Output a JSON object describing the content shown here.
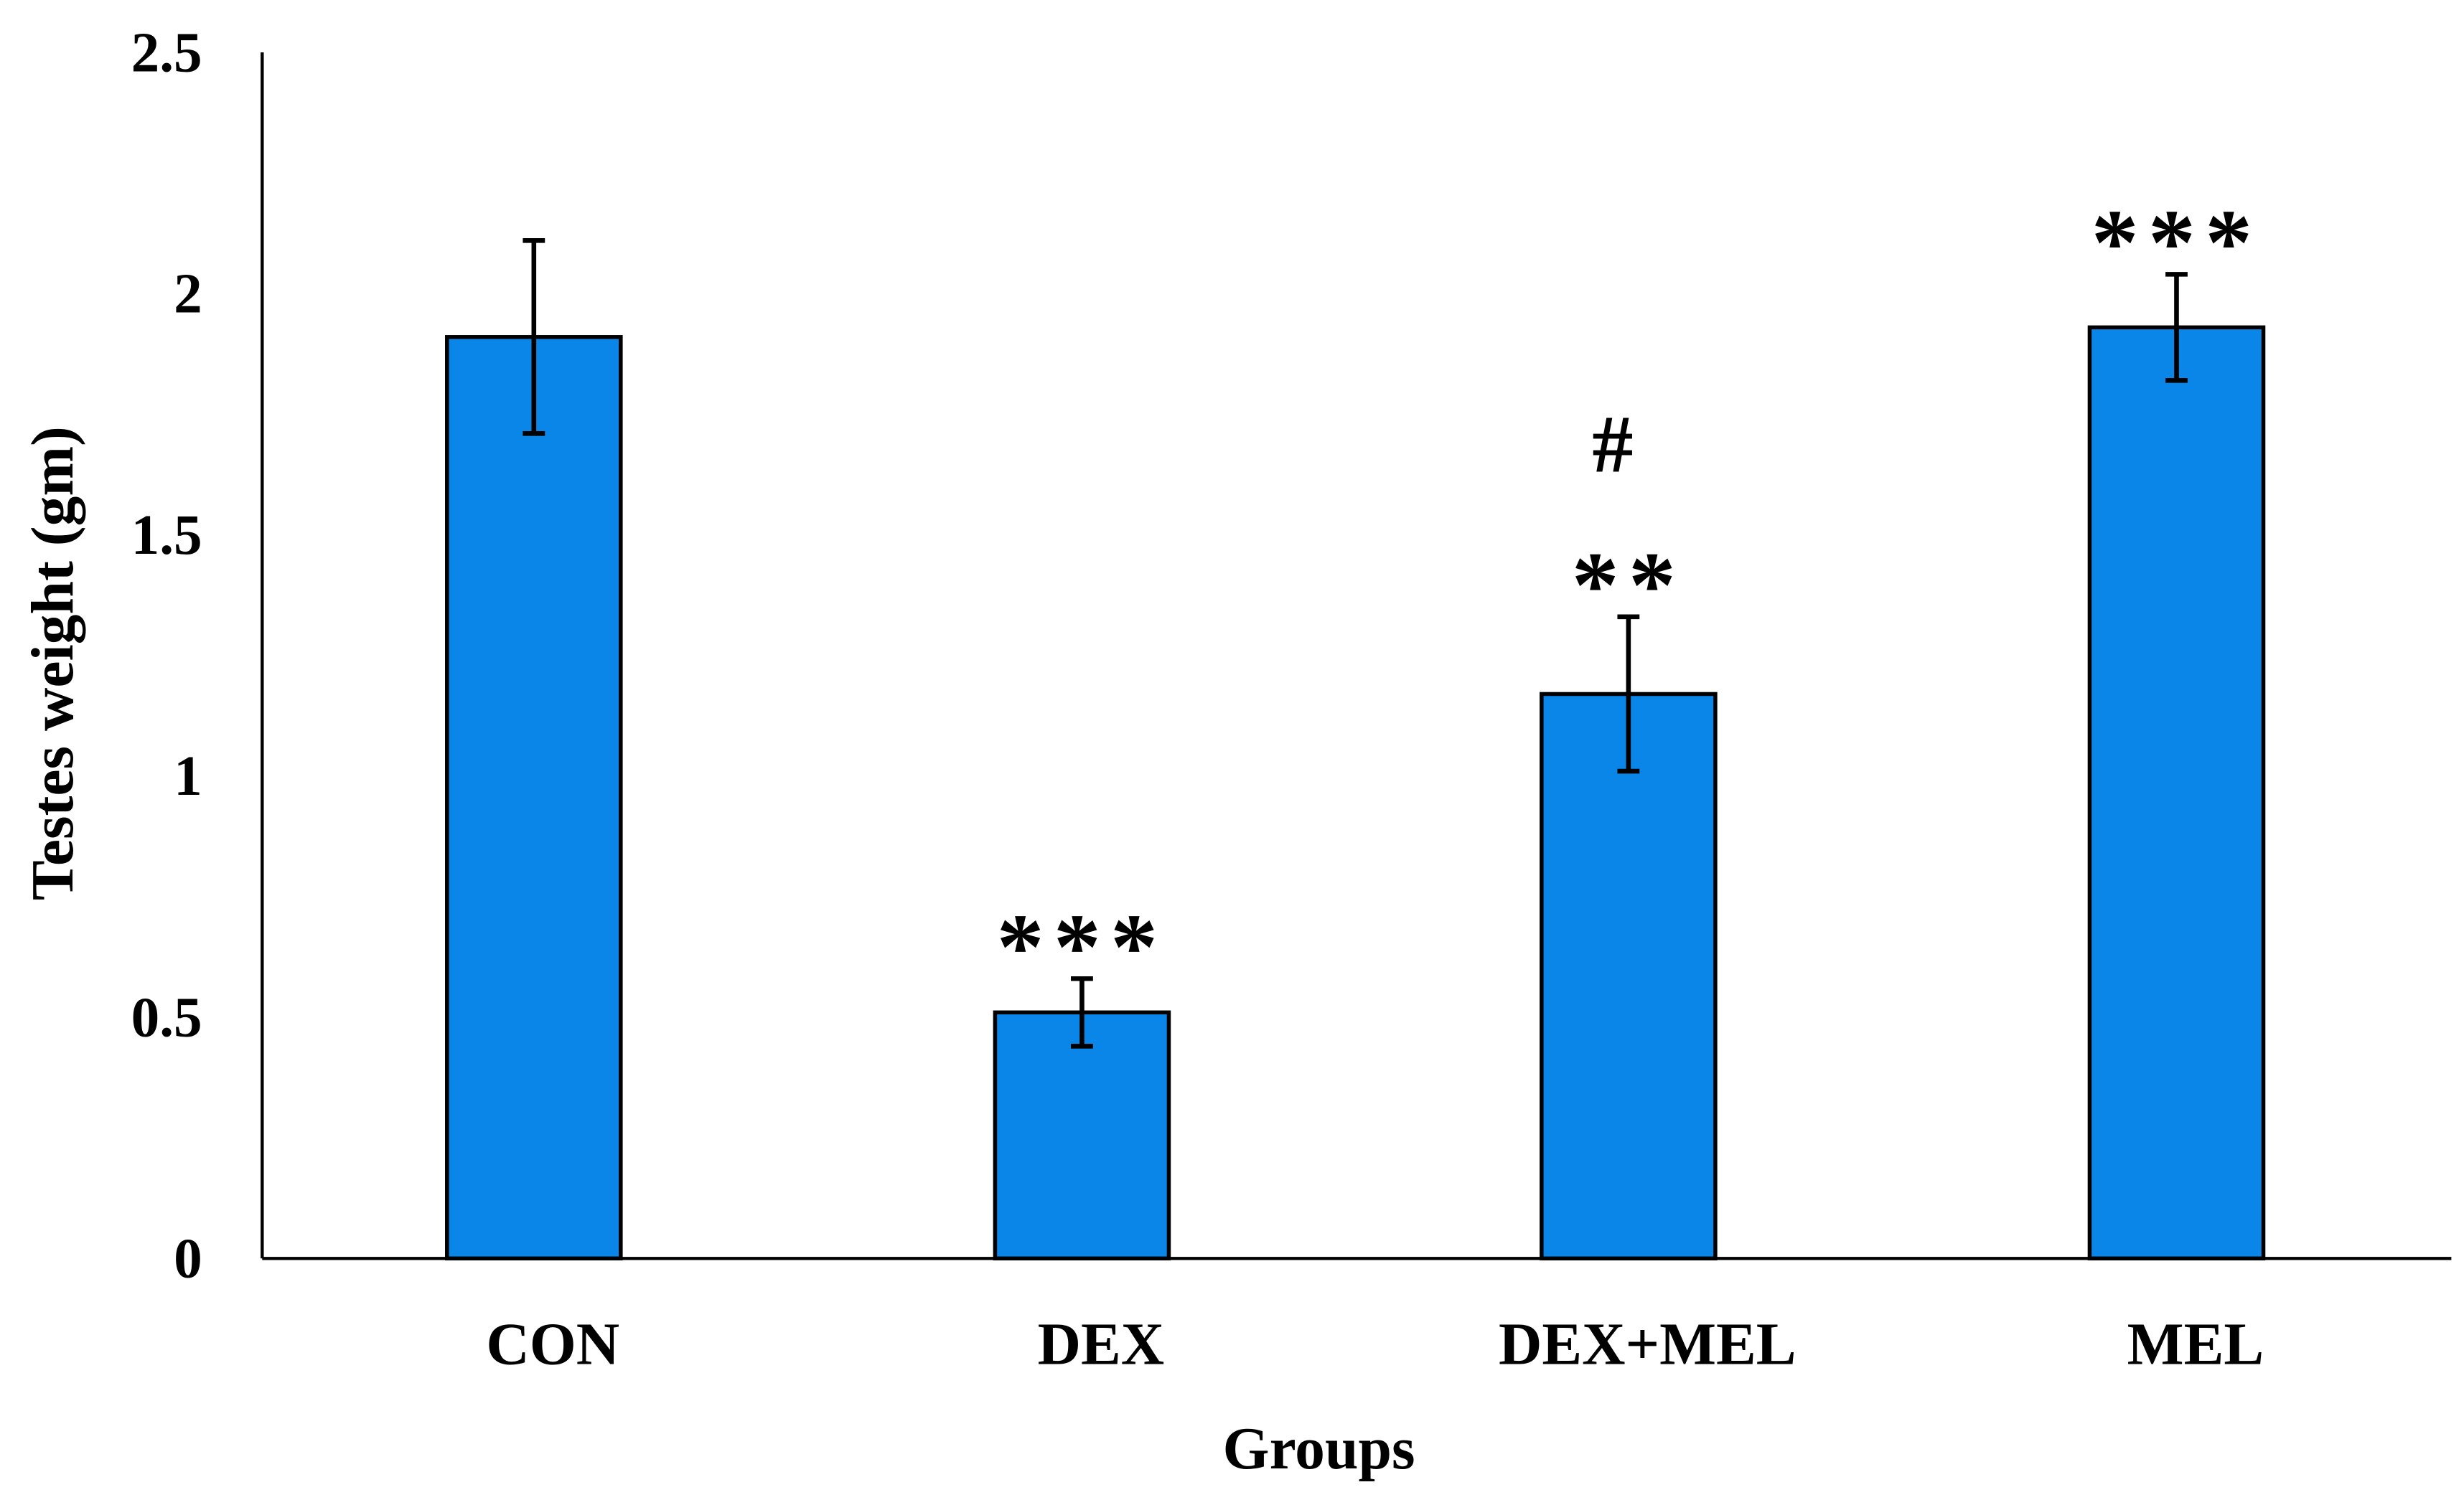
{
  "chart_data": {
    "type": "bar",
    "title": "",
    "xlabel": "Groups",
    "ylabel": "Testes weight (gm)",
    "ylim": [
      0,
      2.5
    ],
    "yticks": [
      0,
      0.5,
      1,
      1.5,
      2,
      2.5
    ],
    "ytick_labels": [
      "0",
      "0.5",
      "1",
      "1.5",
      "2",
      "2.5"
    ],
    "categories": [
      "CON",
      "DEX",
      "DEX+MEL",
      "MEL"
    ],
    "values": [
      1.91,
      0.51,
      1.17,
      1.93
    ],
    "errors": [
      0.2,
      0.07,
      0.16,
      0.11
    ],
    "annotations": [
      [],
      [
        "***"
      ],
      [
        "**",
        "#"
      ],
      [
        "***"
      ]
    ],
    "bar_color": "#0A86E8",
    "grid": false,
    "legend": "none"
  }
}
